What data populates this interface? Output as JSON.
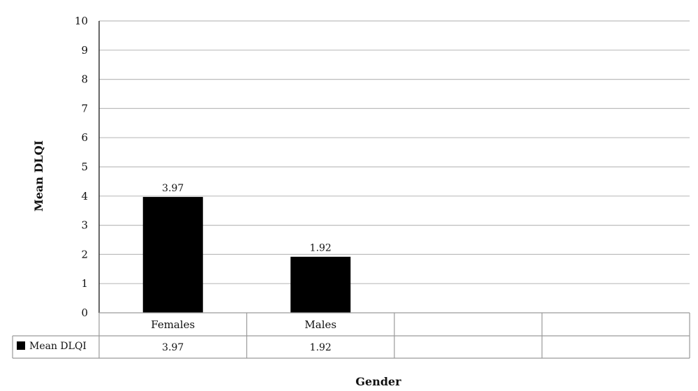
{
  "chart_data": {
    "type": "bar",
    "categories": [
      "Females",
      "Males",
      "",
      ""
    ],
    "series": [
      {
        "name": "Mean DLQI",
        "values": [
          3.97,
          1.92,
          null,
          null
        ],
        "color": "#000000"
      }
    ],
    "data_labels": [
      "3.97",
      "1.92",
      "",
      ""
    ],
    "table_values": [
      "3.97",
      "1.92",
      "",
      ""
    ],
    "xlabel": "Gender",
    "ylabel": "Mean DLQI",
    "ylim": [
      0,
      10
    ],
    "yticks": [
      "0",
      "1",
      "2",
      "3",
      "4",
      "5",
      "6",
      "7",
      "8",
      "9",
      "10"
    ],
    "grid": true,
    "legend": "data-table"
  }
}
